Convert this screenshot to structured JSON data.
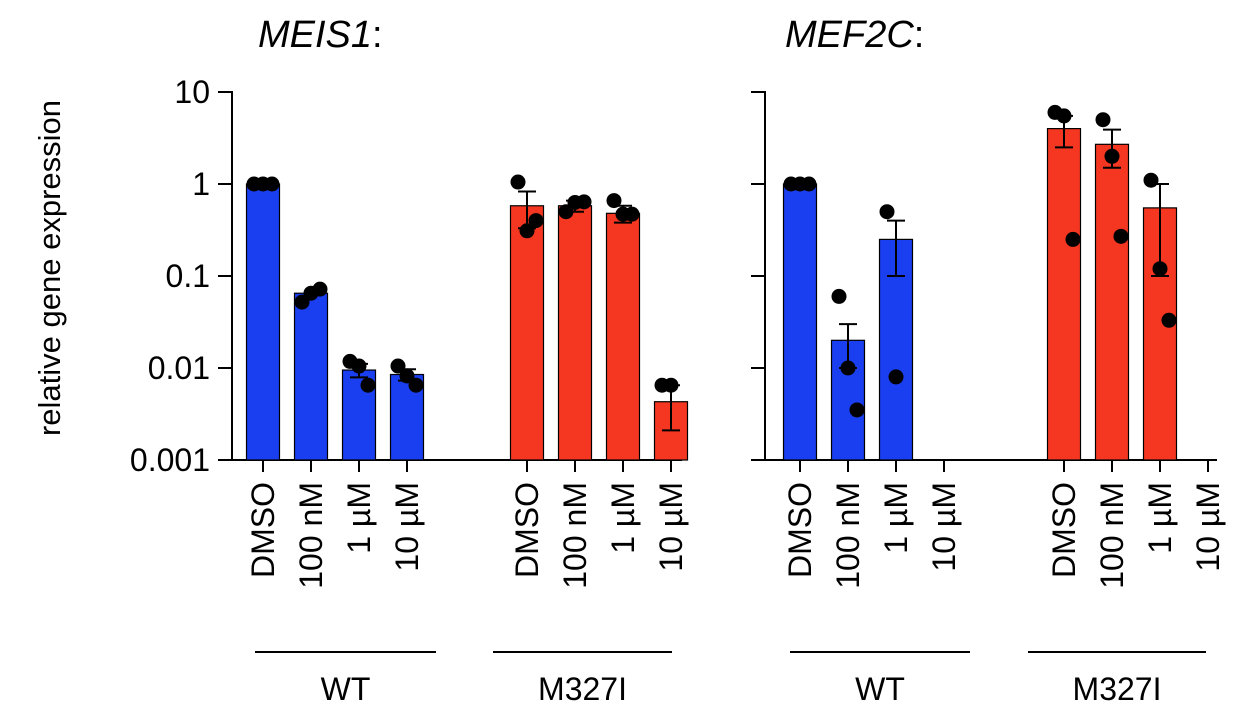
{
  "y_axis_label": "relative gene expression",
  "colors": {
    "wt": "#1a3ff0",
    "m327i": "#f53722",
    "point": "#000000",
    "axis": "#000000"
  },
  "chart_data": [
    {
      "type": "bar",
      "title": "MEIS1",
      "title_suffix": ":",
      "yscale": "log",
      "ylim": [
        0.001,
        10
      ],
      "ytick_labels": [
        "10",
        "1",
        "0.1",
        "0.01",
        "0.001"
      ],
      "ylabel": "relative gene expression",
      "groups": [
        {
          "name": "WT",
          "categories": [
            "DMSO",
            "100 nM",
            "1 µM",
            "10 µM"
          ],
          "values": [
            1.0,
            0.065,
            0.0095,
            0.0085
          ],
          "err": [
            null,
            null,
            0.0016,
            0.0012
          ],
          "points": [
            [
              1.0,
              1.0,
              1.0
            ],
            [
              0.052,
              0.065,
              0.072
            ],
            [
              0.0118,
              0.0105,
              0.0065
            ],
            [
              0.0105,
              0.0082,
              0.0065
            ]
          ]
        },
        {
          "name": "M327I",
          "categories": [
            "DMSO",
            "100 nM",
            "1 µM",
            "10 µM"
          ],
          "values": [
            0.58,
            0.58,
            0.48,
            0.0043
          ],
          "err": [
            0.25,
            0.08,
            0.1,
            0.0022
          ],
          "points": [
            [
              1.05,
              0.31,
              0.4
            ],
            [
              0.5,
              0.63,
              0.64
            ],
            [
              0.66,
              0.47,
              0.47
            ],
            [
              0.0065,
              0.0065,
              null
            ]
          ]
        }
      ]
    },
    {
      "type": "bar",
      "title": "MEF2C",
      "title_suffix": ":",
      "yscale": "log",
      "ylim": [
        0.001,
        10
      ],
      "ytick_labels": [],
      "groups": [
        {
          "name": "WT",
          "categories": [
            "DMSO",
            "100 nM",
            "1 µM",
            "10 µM"
          ],
          "values": [
            1.0,
            0.02,
            0.25,
            null
          ],
          "err": [
            null,
            0.01,
            0.15,
            null
          ],
          "points": [
            [
              1.0,
              1.0,
              1.0
            ],
            [
              0.06,
              0.01,
              0.0035
            ],
            [
              0.5,
              0.008,
              null
            ],
            [
              null,
              null,
              null
            ]
          ]
        },
        {
          "name": "M327I",
          "categories": [
            "DMSO",
            "100 nM",
            "1 µM",
            "10 µM"
          ],
          "values": [
            4.0,
            2.7,
            0.55,
            null
          ],
          "err": [
            1.5,
            1.2,
            0.45,
            null
          ],
          "points": [
            [
              6.0,
              5.5,
              0.25
            ],
            [
              5.0,
              2.0,
              0.27
            ],
            [
              1.1,
              0.12,
              0.033
            ],
            [
              null,
              null,
              null
            ]
          ]
        }
      ]
    }
  ]
}
